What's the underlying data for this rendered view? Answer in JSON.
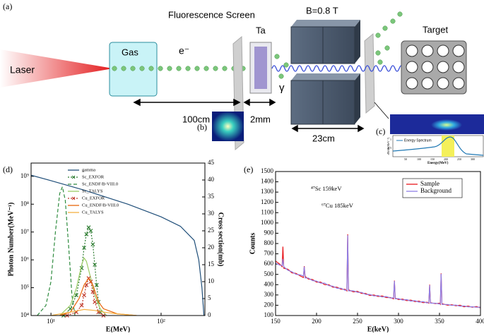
{
  "diagram": {
    "panel_a": "(a)",
    "laser": "Laser",
    "gas": "Gas",
    "electron": "e⁻",
    "screen": "Fluorescence Screen",
    "ta": "Ta",
    "field": "B=0.8 T",
    "target": "Target",
    "gamma": "γ",
    "dist_gas": "100cm",
    "dist_ta": "2mm",
    "dist_magnet": "23cm",
    "panel_b": "(b)",
    "panel_c": "(c)",
    "inset": {
      "legend": "Energy Spectrum",
      "xlabel": "Energy(MeV)",
      "ylabel": "dN/dE(MeV⁻¹)",
      "xticks": [
        "50",
        "100",
        "150",
        "200",
        "250",
        "300"
      ],
      "yticks": [
        "0.5",
        "1"
      ]
    }
  },
  "chart_data": [
    {
      "type": "line",
      "panel_label": "(d)",
      "xlabel": "E(MeV)",
      "ylabel": "Photon Number(MeV⁻¹)",
      "y2label": "Cross section(mb)",
      "xlog": true,
      "ylog": true,
      "legend": "upper left",
      "xlim": [
        6.6,
        250
      ],
      "xticks": [
        {
          "value": 10,
          "label": "10¹"
        },
        {
          "value": 100,
          "label": "10²"
        }
      ],
      "ylim": [
        10000,
        3000000000
      ],
      "yticks": [
        {
          "value": 10000,
          "label": "10⁴"
        },
        {
          "value": 100000,
          "label": "10⁵"
        },
        {
          "value": 1000000,
          "label": "10⁶"
        },
        {
          "value": 10000000,
          "label": "10⁷"
        },
        {
          "value": 100000000,
          "label": "10⁸"
        },
        {
          "value": 1000000000,
          "label": "10⁹"
        }
      ],
      "y2lim": [
        0,
        45
      ],
      "y2ticks": [
        0,
        5,
        10,
        15,
        20,
        25,
        30,
        35,
        40,
        45
      ],
      "series": [
        {
          "name": "gamma",
          "color": "#1f4e79",
          "dash": "solid",
          "x": [
            6.6,
            10,
            20,
            50,
            100,
            150,
            200,
            220,
            235,
            245
          ],
          "values": [
            1100000000,
            700000000,
            320000000,
            100000000,
            35000000,
            16000000,
            5000000,
            1000000,
            100000,
            10000
          ]
        },
        {
          "name": "Sc_EXFOR",
          "color": "#2e7d32",
          "dash": "dotted",
          "marker": "x",
          "axis": "y2",
          "x": [
            13,
            15,
            17,
            19,
            20,
            21,
            22,
            23,
            24,
            25,
            26,
            27,
            28
          ],
          "values": [
            0,
            2,
            6,
            14,
            20,
            24,
            26,
            25,
            21,
            15,
            9,
            4,
            1
          ]
        },
        {
          "name": "Sc_ENDF/B-VIII.0",
          "color": "#2e8b3e",
          "dash": "dashed",
          "axis": "y2",
          "x": [
            7.5,
            9,
            10,
            11,
            12,
            12.7,
            13.5,
            14.5,
            15.5,
            16.5
          ],
          "values": [
            0,
            3,
            10,
            25,
            36,
            38,
            34,
            20,
            6,
            0
          ]
        },
        {
          "name": "Sc_TALYS",
          "color": "#9ccc65",
          "dash": "solid",
          "axis": "y2",
          "x": [
            12,
            15,
            17,
            19,
            20,
            21,
            23,
            25,
            28,
            32
          ],
          "values": [
            0,
            3,
            8,
            15,
            17,
            16,
            11,
            6,
            2,
            0
          ]
        },
        {
          "name": "Cu_EXFOR",
          "color": "#c0392b",
          "dash": "dotted",
          "marker": "x",
          "axis": "y2",
          "x": [
            14,
            17,
            19,
            20,
            21,
            22,
            23,
            24,
            25,
            27,
            30
          ],
          "values": [
            0,
            1,
            3,
            6,
            9,
            11,
            10,
            7,
            4,
            1,
            0
          ]
        },
        {
          "name": "Cu_ENDF/B-VIII.0",
          "color": "#e8650a",
          "dash": "solid",
          "axis": "y2",
          "x": [
            12,
            15,
            18,
            20,
            22,
            24,
            27,
            30,
            40,
            60
          ],
          "values": [
            0,
            1,
            5,
            9,
            11,
            9,
            4,
            2,
            0.5,
            0
          ]
        },
        {
          "name": "Cu_TALYS",
          "color": "#f5b041",
          "dash": "solid",
          "axis": "y2",
          "x": [
            10,
            15,
            20,
            25,
            30,
            40,
            60
          ],
          "values": [
            0,
            1,
            1.8,
            1.5,
            1,
            0.5,
            0
          ]
        }
      ]
    },
    {
      "type": "line",
      "panel_label": "(e)",
      "xlabel": "E(keV)",
      "ylabel": "Counts",
      "legend": "upper right",
      "xlim": [
        150,
        400
      ],
      "xticks": [
        150,
        200,
        250,
        300,
        350,
        400
      ],
      "ylim": [
        100,
        1500
      ],
      "yticks": [
        100,
        200,
        300,
        400,
        500,
        600,
        700,
        800,
        900,
        1000,
        1100,
        1200,
        1300,
        1400,
        1500
      ],
      "annotations": [
        "⁴⁷Sc 159keV",
        "⁶⁷Cu 185keV"
      ],
      "x": [
        150,
        155,
        158,
        159,
        160,
        165,
        170,
        175,
        180,
        184,
        185,
        186,
        190,
        195,
        200,
        205,
        210,
        215,
        220,
        225,
        230,
        235,
        237,
        238,
        239,
        245,
        250,
        255,
        260,
        265,
        270,
        275,
        280,
        285,
        290,
        294,
        295,
        296,
        300,
        305,
        310,
        315,
        320,
        325,
        330,
        335,
        337,
        338,
        339,
        345,
        350,
        351,
        352,
        353,
        360,
        365,
        370,
        375,
        380,
        385,
        390,
        395,
        400
      ],
      "series": [
        {
          "name": "Sample",
          "color": "#e8161b",
          "values": [
            630,
            600,
            575,
            770,
            560,
            550,
            515,
            510,
            485,
            470,
            580,
            480,
            455,
            450,
            425,
            425,
            400,
            400,
            375,
            375,
            355,
            355,
            340,
            890,
            350,
            330,
            335,
            315,
            315,
            295,
            300,
            285,
            290,
            275,
            275,
            262,
            440,
            270,
            255,
            260,
            245,
            250,
            235,
            240,
            225,
            230,
            220,
            400,
            225,
            215,
            220,
            210,
            510,
            215,
            200,
            205,
            195,
            200,
            185,
            192,
            180,
            188,
            175
          ]
        },
        {
          "name": "Background",
          "color": "#8f7fe6",
          "values": [
            610,
            590,
            585,
            650,
            575,
            540,
            525,
            500,
            495,
            485,
            575,
            465,
            465,
            440,
            435,
            415,
            415,
            390,
            385,
            365,
            365,
            345,
            350,
            880,
            340,
            340,
            325,
            325,
            305,
            305,
            290,
            295,
            280,
            285,
            270,
            272,
            435,
            262,
            265,
            250,
            255,
            240,
            245,
            230,
            235,
            222,
            228,
            395,
            220,
            220,
            212,
            216,
            505,
            208,
            208,
            198,
            202,
            190,
            194,
            184,
            186,
            180,
            182
          ]
        }
      ]
    }
  ]
}
